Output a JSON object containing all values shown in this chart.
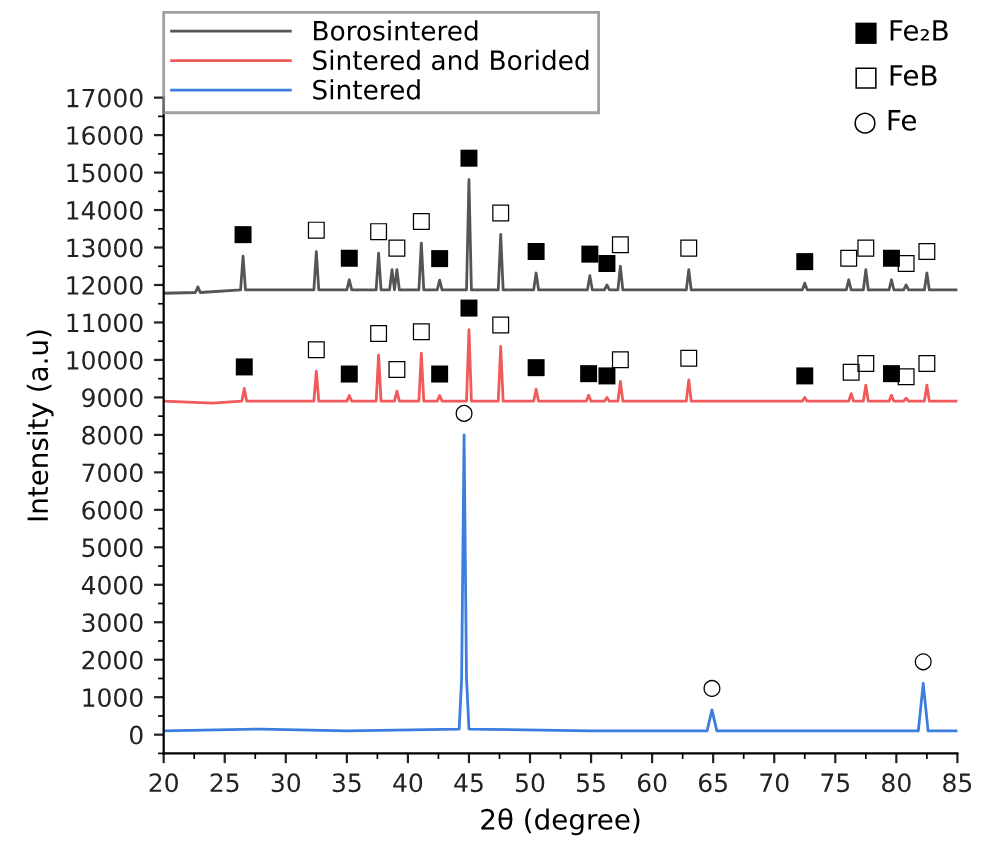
{
  "chart_data": {
    "type": "line",
    "xlabel": "2θ (degree)",
    "ylabel": "Intensity (a.u)",
    "xlim": [
      20,
      85
    ],
    "xticks": [
      20,
      25,
      30,
      35,
      40,
      45,
      50,
      55,
      60,
      65,
      70,
      75,
      80,
      85
    ],
    "ylim": [
      -500,
      17000
    ],
    "yticks": [
      0,
      1000,
      2000,
      3000,
      4000,
      5000,
      6000,
      7000,
      8000,
      9000,
      10000,
      11000,
      12000,
      13000,
      14000,
      15000,
      16000,
      17000
    ],
    "legend": "top left",
    "grid": false,
    "marker": "none",
    "line_style": "solid",
    "series": [
      {
        "name": "Borosintered",
        "color": "#555555",
        "x": [
          20,
          22.6,
          22.8,
          23.0,
          26.3,
          26.5,
          26.7,
          32.3,
          32.5,
          32.7,
          35.0,
          35.2,
          35.4,
          37.4,
          37.6,
          37.8,
          38.5,
          38.7,
          38.9,
          39.1,
          39.3,
          40.9,
          41.1,
          41.3,
          42.4,
          42.6,
          42.8,
          44.8,
          45.0,
          45.2,
          47.4,
          47.6,
          47.8,
          50.3,
          50.5,
          50.7,
          54.7,
          54.9,
          55.1,
          56.1,
          56.3,
          56.5,
          57.2,
          57.4,
          57.6,
          62.8,
          63.0,
          63.2,
          72.3,
          72.5,
          72.7,
          75.9,
          76.1,
          76.3,
          77.3,
          77.5,
          77.7,
          79.4,
          79.6,
          79.8,
          80.6,
          80.8,
          81.0,
          82.3,
          82.5,
          82.7,
          85
        ],
        "values": [
          11780,
          11800,
          11950,
          11800,
          11870,
          12770,
          11870,
          11870,
          12890,
          11870,
          11870,
          12140,
          11870,
          11870,
          12850,
          11870,
          11870,
          12410,
          11870,
          12410,
          11870,
          11870,
          13120,
          11870,
          11870,
          12130,
          11870,
          11870,
          14810,
          11870,
          11870,
          13350,
          11870,
          11870,
          12320,
          11870,
          11870,
          12250,
          11870,
          11870,
          12000,
          11870,
          11870,
          12500,
          11870,
          11870,
          12410,
          11870,
          11870,
          12050,
          11870,
          11870,
          12140,
          11870,
          11870,
          12410,
          11870,
          11870,
          12140,
          11870,
          11870,
          12000,
          11870,
          11870,
          12320,
          11870,
          11870
        ]
      },
      {
        "name": "Sintered and Borided",
        "color": "#f05a5a",
        "x": [
          20,
          24,
          26.4,
          26.6,
          26.8,
          32.3,
          32.5,
          32.7,
          35.0,
          35.2,
          35.4,
          37.4,
          37.6,
          37.8,
          38.9,
          39.1,
          39.3,
          40.9,
          41.1,
          41.3,
          42.4,
          42.6,
          42.8,
          44.8,
          45.0,
          45.2,
          47.4,
          47.6,
          47.8,
          50.3,
          50.5,
          50.7,
          54.6,
          54.8,
          55.0,
          56.1,
          56.3,
          56.5,
          57.2,
          57.4,
          57.6,
          62.8,
          63.0,
          63.2,
          72.3,
          72.5,
          72.7,
          76.1,
          76.3,
          76.5,
          77.3,
          77.5,
          77.7,
          79.4,
          79.6,
          79.8,
          80.6,
          80.8,
          81.0,
          82.3,
          82.5,
          82.7,
          85
        ],
        "values": [
          8900,
          8850,
          8900,
          9240,
          8900,
          8900,
          9700,
          8900,
          8900,
          9050,
          8900,
          8900,
          10130,
          8900,
          8900,
          9170,
          8900,
          8900,
          10180,
          8900,
          8900,
          9050,
          8900,
          8900,
          10810,
          8900,
          8900,
          10360,
          8900,
          8900,
          9220,
          8900,
          8900,
          9060,
          8900,
          8900,
          9000,
          8900,
          8900,
          9430,
          8900,
          8900,
          9470,
          8900,
          8900,
          9000,
          8900,
          8900,
          9100,
          8900,
          8900,
          9330,
          8900,
          8900,
          9060,
          8900,
          8900,
          8980,
          8900,
          8900,
          9330,
          8900,
          8900
        ]
      },
      {
        "name": "Sintered",
        "color": "#3c7de0",
        "x": [
          20,
          28,
          35,
          44.2,
          44.4,
          44.6,
          44.8,
          45.0,
          55,
          64.5,
          64.9,
          65.3,
          75,
          81.8,
          82.2,
          82.6,
          85
        ],
        "values": [
          100,
          150,
          100,
          150,
          1500,
          8000,
          1500,
          150,
          100,
          100,
          660,
          100,
          100,
          100,
          1370,
          100,
          100
        ]
      }
    ],
    "annotations": [
      "■ Fe₂B",
      "□ FeB",
      "○ Fe",
      {
        "text": "■",
        "x": 26.5,
        "y": 12770
      },
      {
        "text": "■",
        "x": 35.2,
        "y": 12140
      },
      {
        "text": "■",
        "x": 42.6,
        "y": 12130
      },
      {
        "text": "■",
        "x": 45.0,
        "y": 14810
      },
      {
        "text": "■",
        "x": 50.5,
        "y": 12320
      },
      {
        "text": "■",
        "x": 54.9,
        "y": 12250
      },
      {
        "text": "■",
        "x": 56.3,
        "y": 12000
      },
      {
        "text": "■",
        "x": 72.5,
        "y": 12050
      },
      {
        "text": "■",
        "x": 79.6,
        "y": 12140
      },
      {
        "text": "□",
        "x": 32.5,
        "y": 12890
      },
      {
        "text": "□",
        "x": 37.6,
        "y": 12850
      },
      {
        "text": "□",
        "x": 39.1,
        "y": 12410
      },
      {
        "text": "□",
        "x": 41.1,
        "y": 13120
      },
      {
        "text": "□",
        "x": 47.6,
        "y": 13350
      },
      {
        "text": "□",
        "x": 57.4,
        "y": 12500
      },
      {
        "text": "□",
        "x": 63.0,
        "y": 12410
      },
      {
        "text": "□",
        "x": 76.1,
        "y": 12140
      },
      {
        "text": "□",
        "x": 77.5,
        "y": 12410
      },
      {
        "text": "□",
        "x": 80.8,
        "y": 12000
      },
      {
        "text": "□",
        "x": 82.5,
        "y": 12320
      },
      {
        "text": "■",
        "x": 26.6,
        "y": 9240
      },
      {
        "text": "■",
        "x": 35.2,
        "y": 9050
      },
      {
        "text": "■",
        "x": 42.6,
        "y": 9050
      },
      {
        "text": "■",
        "x": 45.0,
        "y": 10810
      },
      {
        "text": "■",
        "x": 50.5,
        "y": 9220
      },
      {
        "text": "■",
        "x": 54.8,
        "y": 9060
      },
      {
        "text": "■",
        "x": 56.3,
        "y": 9000
      },
      {
        "text": "■",
        "x": 72.5,
        "y": 9000
      },
      {
        "text": "■",
        "x": 79.6,
        "y": 9060
      },
      {
        "text": "□",
        "x": 32.5,
        "y": 9700
      },
      {
        "text": "□",
        "x": 37.6,
        "y": 10130
      },
      {
        "text": "□",
        "x": 39.1,
        "y": 9170
      },
      {
        "text": "□",
        "x": 41.1,
        "y": 10180
      },
      {
        "text": "□",
        "x": 47.6,
        "y": 10360
      },
      {
        "text": "□",
        "x": 57.4,
        "y": 9430
      },
      {
        "text": "□",
        "x": 63.0,
        "y": 9470
      },
      {
        "text": "□",
        "x": 76.3,
        "y": 9100
      },
      {
        "text": "□",
        "x": 77.5,
        "y": 9330
      },
      {
        "text": "□",
        "x": 80.8,
        "y": 8980
      },
      {
        "text": "□",
        "x": 82.5,
        "y": 9330
      },
      {
        "text": "○",
        "x": 44.6,
        "y": 8000
      },
      {
        "text": "○",
        "x": 64.9,
        "y": 660
      },
      {
        "text": "○",
        "x": 82.2,
        "y": 1370
      }
    ]
  }
}
